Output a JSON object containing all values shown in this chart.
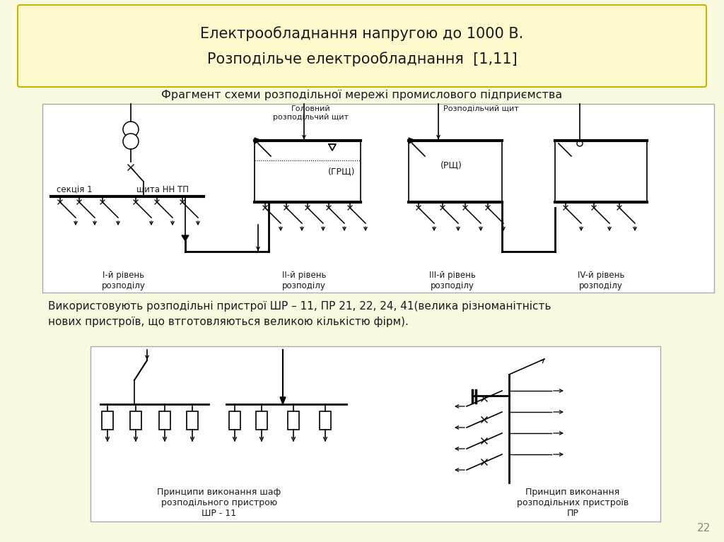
{
  "bg_color": "#FAFAE0",
  "title_box_color": "#FFFACD",
  "title_box_edge": "#C8B400",
  "title_line1": "Електрообладнання напругою до 1000 В.",
  "title_line2": "Розподільче електрообладнання  [1,11]",
  "subtitle": "Фрагмент схеми розподільної мережі промислового підприємства",
  "text_body_1": "Використовують розподільні пристрої ШР – 11, ПР 21, 22, 24, 41(велика різноманітність",
  "text_body_2": "нових пристроїв, що втготовляються великою кількістю фірм).",
  "label_grshch": "(ГРЩ)",
  "label_rshch": "(РЩ)",
  "label_head_sh": "Головний\nрозподільчий щит",
  "label_distr_sh": "Розподільчий щит",
  "label_sek": "секція 1",
  "label_shita": "щита НН ТП",
  "label_L1": "I-й рівень\nрозподілу",
  "label_L2": "II-й рівень\nрозподілу",
  "label_L3": "III-й рівень\nрозподілу",
  "label_L4": "IV-й рівень\nрозподілу",
  "label_shr11_cap": "Принципи виконання шаф\nрозподільного пристрою\nШР - 11",
  "label_pr_cap": "Принцип виконання\nрозподільних пристроїв\nПР",
  "page_num": "22",
  "text_color": "#1a1a1a",
  "line_color": "#000000",
  "gray_color": "#888888"
}
